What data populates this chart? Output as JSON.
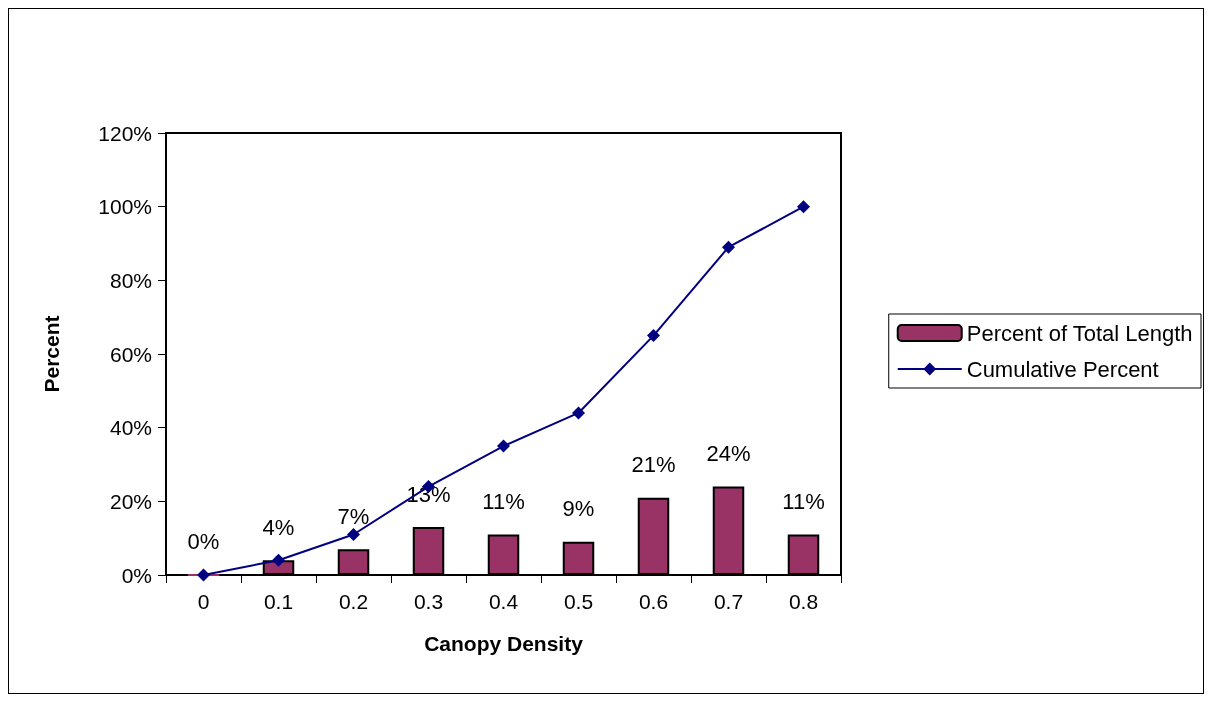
{
  "chart_data": {
    "type": "bar",
    "xlabel": "Canopy Density",
    "ylabel": "Percent",
    "categories": [
      "0",
      "0.1",
      "0.2",
      "0.3",
      "0.4",
      "0.5",
      "0.6",
      "0.7",
      "0.8"
    ],
    "series": [
      {
        "name": "Percent of Total Length",
        "color": "#993366",
        "values": [
          0,
          4,
          7,
          13,
          11,
          9,
          21,
          24,
          11
        ],
        "value_labels": [
          "0%",
          "4%",
          "7%",
          "13%",
          "11%",
          "9%",
          "21%",
          "24%",
          "11%"
        ]
      },
      {
        "name": "Cumulative Percent",
        "type": "line",
        "color": "#000080",
        "marker": "diamond",
        "values": [
          0,
          4,
          11,
          24,
          35,
          44,
          65,
          89,
          100
        ]
      }
    ],
    "ylim": [
      0,
      120
    ],
    "yticks": [
      {
        "value": 0,
        "label": "0%"
      },
      {
        "value": 20,
        "label": "20%"
      },
      {
        "value": 40,
        "label": "40%"
      },
      {
        "value": 60,
        "label": "60%"
      },
      {
        "value": 80,
        "label": "80%"
      },
      {
        "value": 100,
        "label": "100%"
      },
      {
        "value": 120,
        "label": "120%"
      }
    ],
    "grid": false,
    "legend": "right"
  }
}
